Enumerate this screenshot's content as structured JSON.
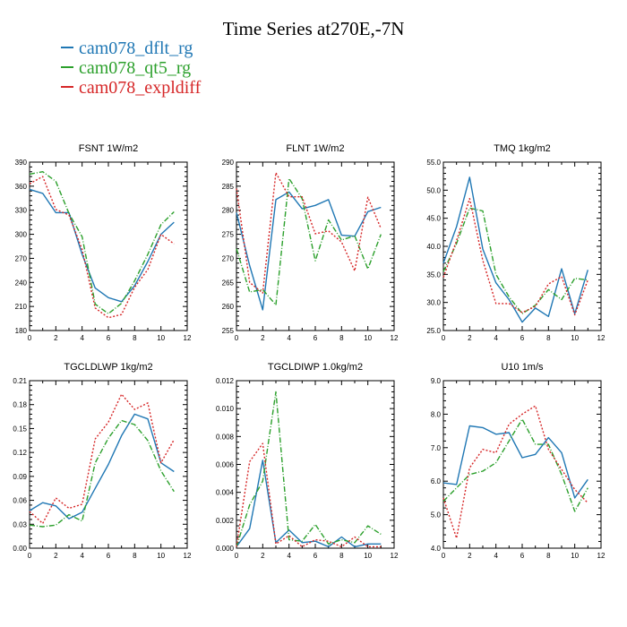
{
  "title": "Time Series at270E,-7N",
  "legend": [
    {
      "label": "cam078_dflt_rg",
      "color": "#1f77b4",
      "dash": ""
    },
    {
      "label": "cam078_qt5_rg",
      "color": "#2ca02c",
      "dash": "6,2,1,2"
    },
    {
      "label": "cam078_expldiff",
      "color": "#d62728",
      "dash": "2,2"
    }
  ],
  "chart_data": [
    {
      "type": "line",
      "title": "FSNT   1W/m2",
      "xlim": [
        0,
        12
      ],
      "xticks": [
        0,
        2,
        4,
        6,
        8,
        10,
        12
      ],
      "ylim": [
        180,
        390
      ],
      "yticks": [
        "180",
        "210",
        "240",
        "270",
        "300",
        "330",
        "360",
        "390"
      ],
      "x": [
        0,
        1,
        2,
        3,
        4,
        5,
        6,
        7,
        8,
        9,
        10,
        11
      ],
      "series": [
        {
          "name": "cam078_dflt_rg",
          "values": [
            356,
            351,
            327,
            327,
            275,
            233,
            221,
            216,
            236,
            266,
            300,
            315
          ]
        },
        {
          "name": "cam078_qt5_rg",
          "values": [
            375,
            378,
            366,
            326,
            297,
            213,
            201,
            214,
            242,
            275,
            312,
            328
          ]
        },
        {
          "name": "cam078_expldiff",
          "values": [
            363,
            372,
            331,
            324,
            281,
            208,
            196,
            200,
            234,
            256,
            300,
            288
          ]
        }
      ]
    },
    {
      "type": "line",
      "title": "FLNT   1W/m2",
      "xlim": [
        0,
        12
      ],
      "xticks": [
        0,
        2,
        4,
        6,
        8,
        10,
        12
      ],
      "ylim": [
        255,
        290
      ],
      "yticks": [
        "255",
        "260",
        "265",
        "270",
        "275",
        "280",
        "285",
        "290"
      ],
      "x": [
        0,
        1,
        2,
        3,
        4,
        5,
        6,
        7,
        8,
        9,
        10,
        11
      ],
      "series": [
        {
          "name": "cam078_dflt_rg",
          "values": [
            279.5,
            268.5,
            259.3,
            282.2,
            283.8,
            280.3,
            281.0,
            282.2,
            274.8,
            274.6,
            279.7,
            280.6
          ]
        },
        {
          "name": "cam078_qt5_rg",
          "values": [
            272,
            263,
            263.5,
            260.3,
            286.6,
            282.4,
            269.5,
            278.0,
            273.8,
            274.7,
            267.8,
            275.0
          ]
        },
        {
          "name": "cam078_expldiff",
          "values": [
            284.5,
            265.0,
            262.8,
            287.8,
            282.8,
            282.8,
            275.1,
            275.7,
            273.4,
            267.4,
            282.7,
            276.2
          ]
        }
      ]
    },
    {
      "type": "line",
      "title": "TMQ   1kg/m2",
      "xlim": [
        0,
        12
      ],
      "xticks": [
        0,
        2,
        4,
        6,
        8,
        10,
        12
      ],
      "ylim": [
        25,
        55
      ],
      "yticks": [
        "25.0",
        "30.0",
        "35.0",
        "40.0",
        "45.0",
        "50.0",
        "55.0"
      ],
      "x": [
        0,
        1,
        2,
        3,
        4,
        5,
        6,
        7,
        8,
        9,
        10,
        11
      ],
      "series": [
        {
          "name": "cam078_dflt_rg",
          "values": [
            37.0,
            43.5,
            52.3,
            39.5,
            33.5,
            30.5,
            26.5,
            29.0,
            27.5,
            36.0,
            28.0,
            35.8
          ]
        },
        {
          "name": "cam078_qt5_rg",
          "values": [
            35.5,
            40.5,
            46.8,
            46.3,
            35.0,
            31.0,
            28.0,
            29.5,
            32.3,
            30.5,
            34.3,
            34.0
          ]
        },
        {
          "name": "cam078_expldiff",
          "values": [
            34.5,
            41.0,
            48.5,
            37.5,
            29.8,
            29.8,
            28.2,
            29.3,
            33.3,
            34.6,
            27.8,
            34.0
          ]
        }
      ]
    },
    {
      "type": "line",
      "title": "TGCLDLWP   1kg/m2",
      "xlim": [
        0,
        12
      ],
      "xticks": [
        0,
        2,
        4,
        6,
        8,
        10,
        12
      ],
      "ylim": [
        0,
        0.21
      ],
      "yticks": [
        "0.00",
        "0.03",
        "0.06",
        "0.09",
        "0.12",
        "0.15",
        "0.18",
        "0.21"
      ],
      "x": [
        0,
        1,
        2,
        3,
        4,
        5,
        6,
        7,
        8,
        9,
        10,
        11
      ],
      "series": [
        {
          "name": "cam078_dflt_rg",
          "values": [
            0.047,
            0.057,
            0.053,
            0.037,
            0.045,
            0.075,
            0.105,
            0.141,
            0.168,
            0.162,
            0.107,
            0.096
          ]
        },
        {
          "name": "cam078_qt5_rg",
          "values": [
            0.029,
            0.027,
            0.029,
            0.042,
            0.034,
            0.107,
            0.138,
            0.16,
            0.155,
            0.135,
            0.097,
            0.071
          ]
        },
        {
          "name": "cam078_expldiff",
          "values": [
            0.046,
            0.031,
            0.063,
            0.05,
            0.055,
            0.137,
            0.158,
            0.193,
            0.174,
            0.182,
            0.107,
            0.136
          ]
        }
      ]
    },
    {
      "type": "line",
      "title": "TGCLDIWP   1.0kg/m2",
      "xlim": [
        0,
        12
      ],
      "xticks": [
        0,
        2,
        4,
        6,
        8,
        10,
        12
      ],
      "ylim": [
        0,
        0.012
      ],
      "yticks": [
        "0.000",
        "0.002",
        "0.004",
        "0.006",
        "0.008",
        "0.010",
        "0.012"
      ],
      "x": [
        0,
        1,
        2,
        3,
        4,
        5,
        6,
        7,
        8,
        9,
        10,
        11
      ],
      "series": [
        {
          "name": "cam078_dflt_rg",
          "values": [
            0.0001,
            0.0014,
            0.0063,
            0.0004,
            0.0013,
            0.0004,
            0.0005,
            0.0001,
            0.0008,
            0.0001,
            0.0003,
            0.0003
          ]
        },
        {
          "name": "cam078_qt5_rg",
          "values": [
            0.0001,
            0.0031,
            0.0048,
            0.0112,
            0.0006,
            0.0005,
            0.0017,
            0.0003,
            0.0006,
            0.0004,
            0.0016,
            0.001
          ]
        },
        {
          "name": "cam078_expldiff",
          "values": [
            0.0001,
            0.0062,
            0.0075,
            0.0003,
            0.0009,
            0.0001,
            0.0006,
            0.0005,
            0.0001,
            0.0008,
            0.0001,
            0.0001
          ]
        }
      ]
    },
    {
      "type": "line",
      "title": "U10   1m/s",
      "xlim": [
        0,
        12
      ],
      "xticks": [
        0,
        2,
        4,
        6,
        8,
        10,
        12
      ],
      "ylim": [
        4.0,
        9.0
      ],
      "yticks": [
        "4.0",
        "5.0",
        "6.0",
        "7.0",
        "8.0",
        "9.0"
      ],
      "x": [
        0,
        1,
        2,
        3,
        4,
        5,
        6,
        7,
        8,
        9,
        10,
        11
      ],
      "series": [
        {
          "name": "cam078_dflt_rg",
          "values": [
            5.95,
            5.9,
            7.65,
            7.6,
            7.4,
            7.45,
            6.7,
            6.8,
            7.3,
            6.85,
            5.5,
            6.05
          ]
        },
        {
          "name": "cam078_qt5_rg",
          "values": [
            5.4,
            5.8,
            6.2,
            6.3,
            6.55,
            7.2,
            7.85,
            7.1,
            7.1,
            6.2,
            5.1,
            5.8
          ]
        },
        {
          "name": "cam078_expldiff",
          "values": [
            5.5,
            4.3,
            6.4,
            6.95,
            6.85,
            7.7,
            8.0,
            8.25,
            6.95,
            6.35,
            5.75,
            5.35
          ]
        }
      ]
    }
  ]
}
